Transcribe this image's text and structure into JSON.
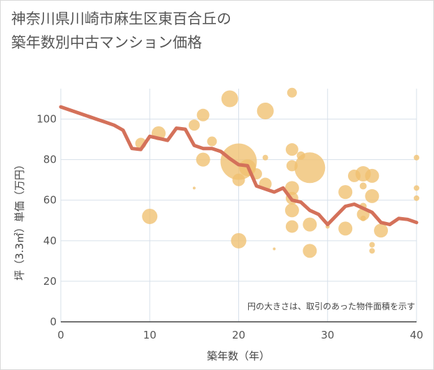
{
  "title_line1": "神奈川県川崎市麻生区東百合丘の",
  "title_line2": "築年数別中古マンション価格",
  "chart_data": {
    "type": "scatter",
    "xlabel": "築年数（年）",
    "ylabel": "坪（3.3㎡）単価（万円）",
    "xlim": [
      0,
      40
    ],
    "ylim": [
      0,
      115
    ],
    "xticks": [
      0,
      10,
      20,
      30,
      40
    ],
    "yticks": [
      0,
      20,
      40,
      60,
      80,
      100
    ],
    "grid": true,
    "annotation": "円の大きさは、取引のあった物件面積を示す",
    "colors": {
      "bubble": "#f0c070",
      "line": "#d4715a",
      "grid": "#d7e0ea",
      "text": "#555555"
    },
    "series": [
      {
        "type": "bubble",
        "points": [
          {
            "x": 9,
            "y": 88,
            "s": 8
          },
          {
            "x": 10,
            "y": 52,
            "s": 11
          },
          {
            "x": 11,
            "y": 93,
            "s": 10
          },
          {
            "x": 15,
            "y": 97,
            "s": 8
          },
          {
            "x": 15,
            "y": 66,
            "s": 2
          },
          {
            "x": 16,
            "y": 102,
            "s": 9
          },
          {
            "x": 16,
            "y": 80,
            "s": 10
          },
          {
            "x": 17,
            "y": 89,
            "s": 7
          },
          {
            "x": 19,
            "y": 110,
            "s": 12
          },
          {
            "x": 20,
            "y": 79,
            "s": 26
          },
          {
            "x": 20,
            "y": 70,
            "s": 9
          },
          {
            "x": 20,
            "y": 40,
            "s": 11
          },
          {
            "x": 21,
            "y": 76,
            "s": 12
          },
          {
            "x": 22,
            "y": 73,
            "s": 8
          },
          {
            "x": 23,
            "y": 104,
            "s": 12
          },
          {
            "x": 23,
            "y": 81,
            "s": 4
          },
          {
            "x": 23,
            "y": 68,
            "s": 9
          },
          {
            "x": 24,
            "y": 36,
            "s": 2
          },
          {
            "x": 26,
            "y": 113,
            "s": 7
          },
          {
            "x": 26,
            "y": 85,
            "s": 9
          },
          {
            "x": 26,
            "y": 77,
            "s": 8
          },
          {
            "x": 26,
            "y": 66,
            "s": 10
          },
          {
            "x": 26,
            "y": 61,
            "s": 9
          },
          {
            "x": 26,
            "y": 55,
            "s": 10
          },
          {
            "x": 26,
            "y": 47,
            "s": 9
          },
          {
            "x": 27,
            "y": 82,
            "s": 6
          },
          {
            "x": 28,
            "y": 76,
            "s": 22
          },
          {
            "x": 28,
            "y": 48,
            "s": 10
          },
          {
            "x": 28,
            "y": 35,
            "s": 10
          },
          {
            "x": 30,
            "y": 47,
            "s": 3
          },
          {
            "x": 32,
            "y": 64,
            "s": 10
          },
          {
            "x": 32,
            "y": 46,
            "s": 10
          },
          {
            "x": 33,
            "y": 72,
            "s": 9
          },
          {
            "x": 34,
            "y": 73,
            "s": 11
          },
          {
            "x": 34,
            "y": 67,
            "s": 5
          },
          {
            "x": 34,
            "y": 57,
            "s": 5
          },
          {
            "x": 34,
            "y": 53,
            "s": 9
          },
          {
            "x": 34,
            "y": 51,
            "s": 4
          },
          {
            "x": 35,
            "y": 72,
            "s": 10
          },
          {
            "x": 35,
            "y": 62,
            "s": 10
          },
          {
            "x": 35,
            "y": 38,
            "s": 4
          },
          {
            "x": 35,
            "y": 35,
            "s": 4
          },
          {
            "x": 36,
            "y": 45,
            "s": 10
          },
          {
            "x": 40,
            "y": 81,
            "s": 4
          },
          {
            "x": 40,
            "y": 66,
            "s": 4
          },
          {
            "x": 40,
            "y": 61,
            "s": 4
          }
        ]
      },
      {
        "type": "line",
        "x": [
          0,
          1,
          2,
          3,
          4,
          5,
          6,
          7,
          8,
          9,
          10,
          11,
          12,
          13,
          14,
          15,
          16,
          17,
          18,
          19,
          20,
          21,
          22,
          23,
          24,
          25,
          26,
          27,
          28,
          29,
          30,
          31,
          32,
          33,
          34,
          35,
          36,
          37,
          38,
          39,
          40
        ],
        "y": [
          106,
          104.5,
          103,
          101.5,
          100,
          98.5,
          97,
          94.5,
          85.5,
          85,
          91.5,
          90.5,
          89.5,
          95.5,
          95,
          87,
          85.5,
          85.5,
          84,
          80.5,
          77.5,
          77,
          67,
          65.5,
          64,
          66,
          60,
          59,
          55,
          53,
          48,
          52.5,
          57,
          58,
          56,
          54,
          49,
          48,
          51,
          50.5,
          49
        ]
      }
    ]
  }
}
